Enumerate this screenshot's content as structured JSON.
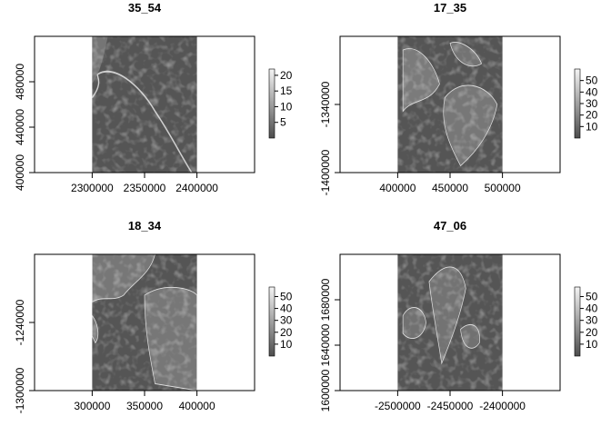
{
  "chart_data": [
    {
      "type": "heatmap",
      "title": "35_54",
      "x_ticks": [
        "2300000",
        "2350000",
        "2400000"
      ],
      "y_ticks": [
        "400000",
        "440000",
        "480000"
      ],
      "xlim": [
        2245000,
        2455000
      ],
      "ylim": [
        400000,
        520000
      ],
      "raster_extent": {
        "x": [
          2300000,
          2400000
        ],
        "y": [
          400000,
          520000
        ]
      },
      "colorbar": {
        "min": 0,
        "max": 22,
        "ticks": [
          "5",
          "10",
          "15",
          "20"
        ]
      }
    },
    {
      "type": "heatmap",
      "title": "17_35",
      "x_ticks": [
        "400000",
        "450000",
        "500000"
      ],
      "y_ticks": [
        "-1400000",
        "-1340000"
      ],
      "xlim": [
        345000,
        555000
      ],
      "ylim": [
        -1400000,
        -1280000
      ],
      "raster_extent": {
        "x": [
          400000,
          500000
        ],
        "y": [
          -1400000,
          -1280000
        ]
      },
      "colorbar": {
        "min": 0,
        "max": 60,
        "ticks": [
          "10",
          "20",
          "30",
          "40",
          "50"
        ]
      }
    },
    {
      "type": "heatmap",
      "title": "18_34",
      "x_ticks": [
        "300000",
        "350000",
        "400000"
      ],
      "y_ticks": [
        "-1300000",
        "-1240000"
      ],
      "xlim": [
        245000,
        455000
      ],
      "ylim": [
        -1300000,
        -1180000
      ],
      "raster_extent": {
        "x": [
          300000,
          400000
        ],
        "y": [
          -1300000,
          -1180000
        ]
      },
      "colorbar": {
        "min": 0,
        "max": 58,
        "ticks": [
          "10",
          "20",
          "30",
          "40",
          "50"
        ]
      }
    },
    {
      "type": "heatmap",
      "title": "47_06",
      "x_ticks": [
        "-2500000",
        "-2450000",
        "-2400000"
      ],
      "y_ticks": [
        "1600000",
        "1640000",
        "1680000"
      ],
      "xlim": [
        -2555000,
        -2345000
      ],
      "ylim": [
        1600000,
        1720000
      ],
      "raster_extent": {
        "x": [
          -2500000,
          -2400000
        ],
        "y": [
          1600000,
          1720000
        ]
      },
      "colorbar": {
        "min": 0,
        "max": 58,
        "ticks": [
          "10",
          "20",
          "30",
          "40",
          "50"
        ]
      }
    }
  ],
  "colors": {
    "raster_background": "#555555",
    "axis": "#000000"
  }
}
